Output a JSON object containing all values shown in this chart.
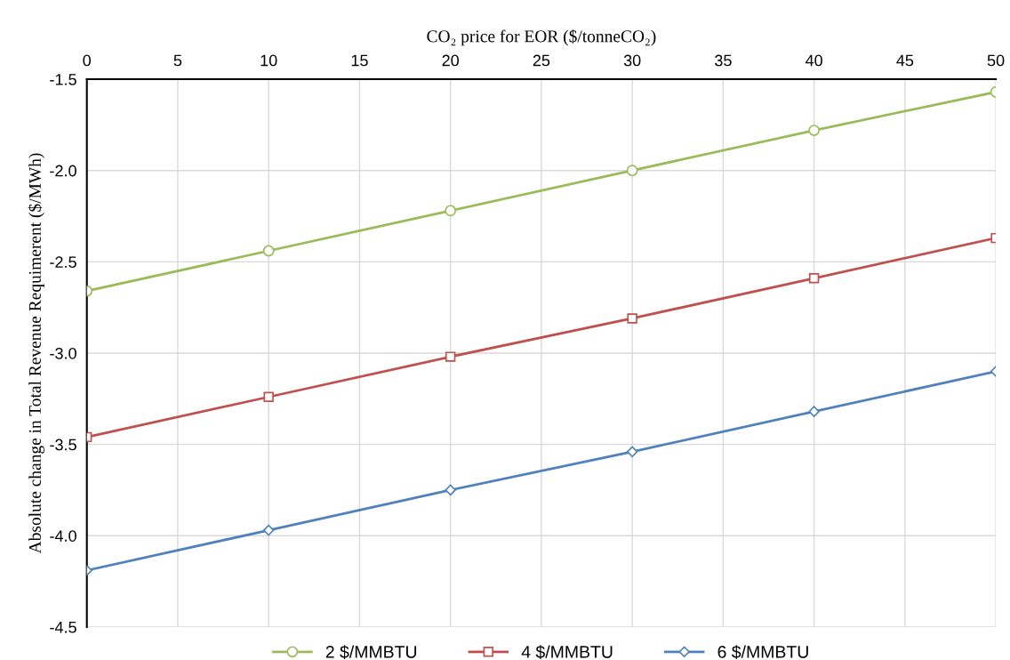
{
  "chart_data": {
    "type": "line",
    "xlabel": "CO₂ price for EOR ($/tonneCO₂)",
    "ylabel": "Absolute change in Total Revenue Requimerent ($/MWh)",
    "x": [
      0,
      10,
      20,
      30,
      40,
      50
    ],
    "series": [
      {
        "name": "2 $/MMBTU",
        "color": "#9bbb59",
        "marker": "circle",
        "values": [
          -2.66,
          -2.44,
          -2.22,
          -2.0,
          -1.78,
          -1.57
        ]
      },
      {
        "name": "4 $/MMBTU",
        "color": "#c0504d",
        "marker": "square",
        "values": [
          -3.46,
          -3.24,
          -3.02,
          -2.81,
          -2.59,
          -2.37
        ]
      },
      {
        "name": "6 $/MMBTU",
        "color": "#4f81bd",
        "marker": "diamond",
        "values": [
          -4.19,
          -3.97,
          -3.75,
          -3.54,
          -3.32,
          -3.1
        ]
      }
    ],
    "xlim": [
      0,
      50
    ],
    "xticks": [
      0,
      5,
      10,
      15,
      20,
      25,
      30,
      35,
      40,
      45,
      50
    ],
    "ylim": [
      -4.5,
      -1.5
    ],
    "yticks": [
      -4.5,
      {
        "value": -4,
        "label": "-4.0"
      },
      -3.5,
      {
        "value": -3,
        "label": "-3.0"
      },
      -2.5,
      {
        "value": -2,
        "label": "-2.0"
      },
      -1.5
    ],
    "grid": true,
    "legend": "bottom",
    "line_style": "solid"
  }
}
